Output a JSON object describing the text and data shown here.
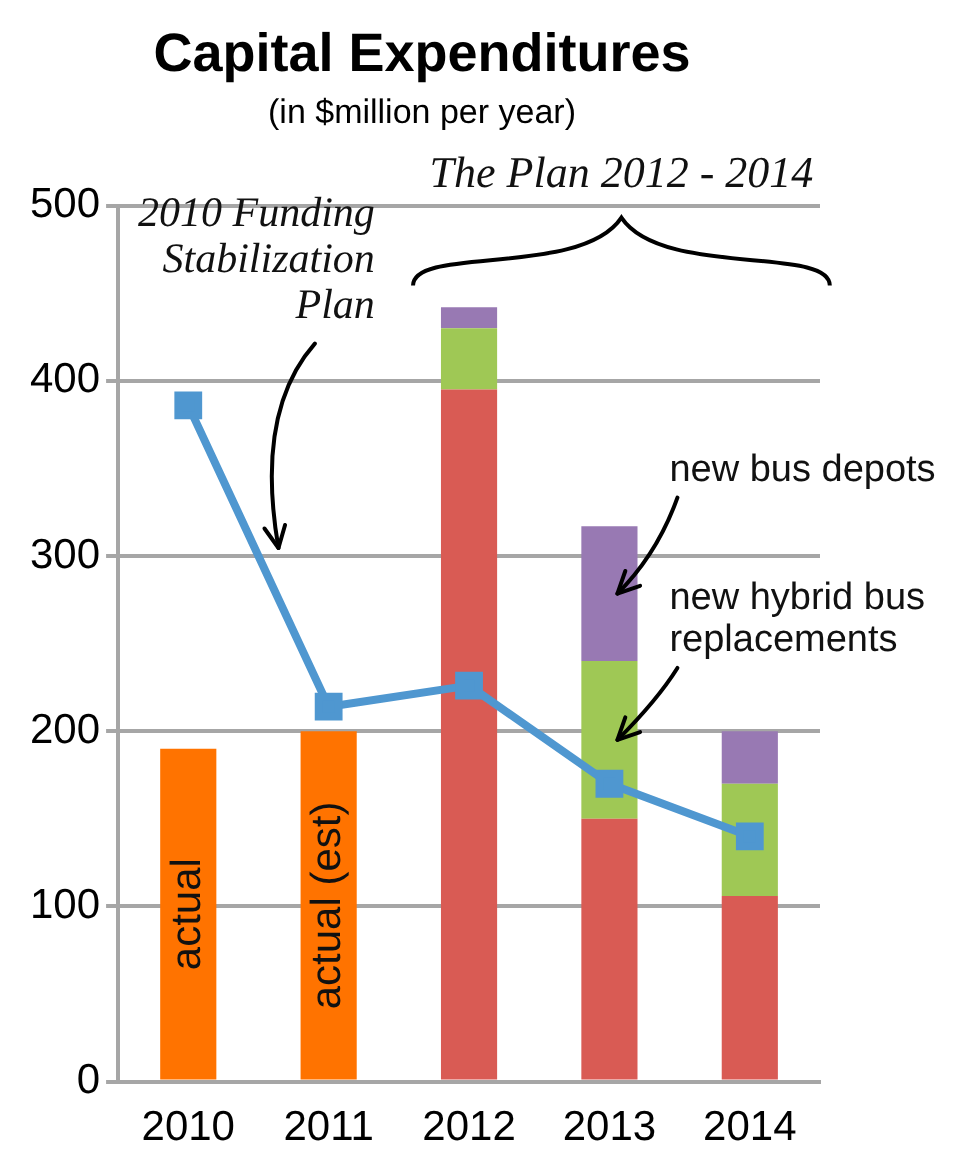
{
  "chart_data": {
    "type": "bar",
    "title": "Capital Expenditures",
    "subtitle": "(in $million per year)",
    "categories": [
      "2010",
      "2011",
      "2012",
      "2013",
      "2014"
    ],
    "series": [
      {
        "color": "#ff7300",
        "values": [
          190,
          200,
          null,
          null,
          null
        ]
      },
      {
        "color": "#d95b54",
        "values": [
          null,
          null,
          395,
          150,
          106
        ]
      },
      {
        "color": "#9fc855",
        "values": [
          null,
          null,
          35,
          90,
          64
        ]
      },
      {
        "color": "#9879b3",
        "values": [
          null,
          null,
          12,
          77,
          30
        ]
      },
      {
        "type": "line",
        "color": "#4f97d0",
        "values": [
          386,
          214,
          226,
          170,
          140
        ]
      }
    ],
    "stacked": true,
    "ylim": [
      0,
      500
    ],
    "yticks": [
      0,
      100,
      200,
      300,
      400,
      500
    ],
    "grid": "y",
    "legend": false,
    "marker": "square",
    "line_style": "solid",
    "annotations": [
      "actual",
      "actual (est)",
      "2010 Funding Stabilization Plan",
      "The Plan 2012 - 2014",
      "new bus depots",
      "new hybrid bus replacements"
    ]
  }
}
